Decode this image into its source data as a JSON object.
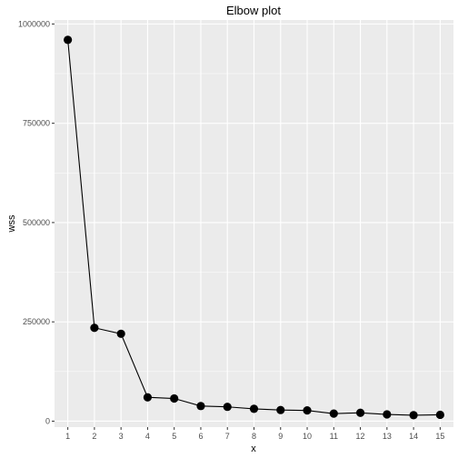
{
  "chart_data": {
    "type": "line",
    "title": "Elbow plot",
    "xlabel": "x",
    "ylabel": "wss",
    "x": [
      1,
      2,
      3,
      4,
      5,
      6,
      7,
      8,
      9,
      10,
      11,
      12,
      13,
      14,
      15
    ],
    "series": [
      {
        "values": [
          960000,
          235000,
          220000,
          60000,
          57000,
          38000,
          36000,
          31000,
          28000,
          27000,
          19000,
          21000,
          17000,
          15000,
          16000
        ]
      }
    ],
    "xlim": [
      0.5,
      15.5
    ],
    "ylim": [
      -15000,
      1010000
    ],
    "x_ticks": [
      "1",
      "2",
      "3",
      "4",
      "5",
      "6",
      "7",
      "8",
      "9",
      "10",
      "11",
      "12",
      "13",
      "14",
      "15"
    ],
    "y_ticks": [
      {
        "value": 0,
        "label": "0"
      },
      {
        "value": 250000,
        "label": "250000"
      },
      {
        "value": 500000,
        "label": "500000"
      },
      {
        "value": 750000,
        "label": "750000"
      },
      {
        "value": 1000000,
        "label": "1000000"
      }
    ],
    "grid": true,
    "colors": {
      "panel": "#ebebeb",
      "grid": "#ffffff",
      "line": "#000000",
      "point": "#000000",
      "tick": "#333333",
      "tick_text": "#4d4d4d"
    }
  }
}
